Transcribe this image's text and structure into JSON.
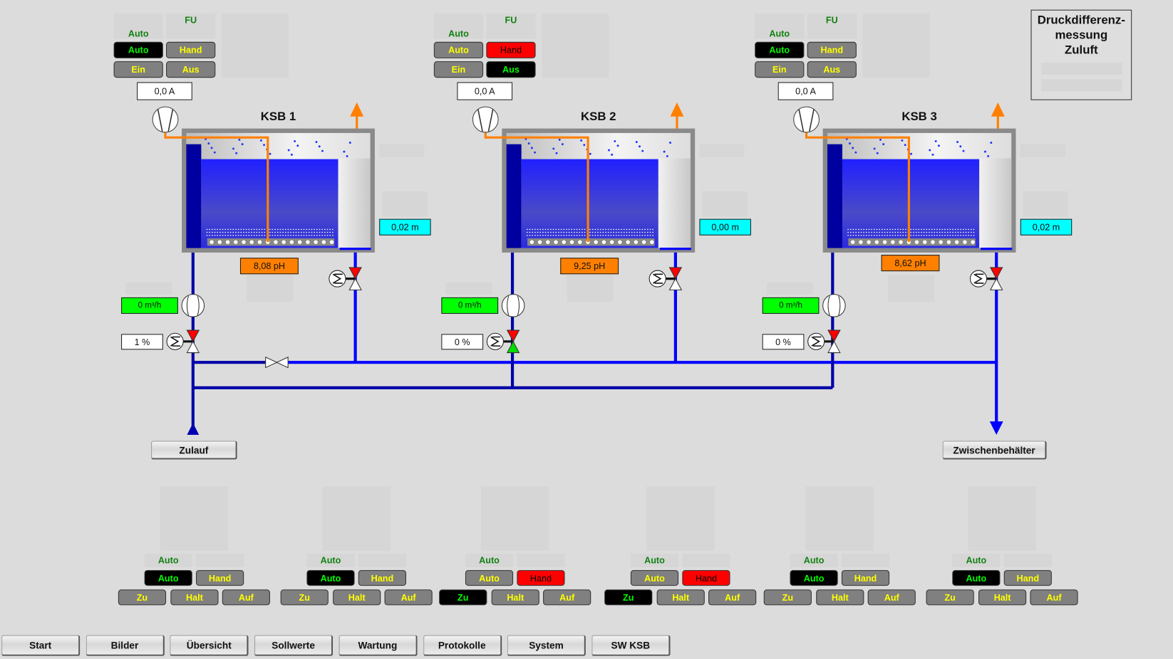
{
  "colors": {
    "background": "#dcdcdc",
    "button": "#808080",
    "button_text": "#ffff00",
    "active": "#000000",
    "active_text": "#00ff00",
    "hand_active": "#ff0000",
    "pipe": "#0000ff",
    "pipe_dark": "#0000a8",
    "exhaust": "#ff8000",
    "water": "#2a2ae8"
  },
  "units": [
    {
      "title": "KSB 1",
      "mode_label": "Auto",
      "fu_label": "FU",
      "auto": {
        "label": "Auto",
        "state": "active"
      },
      "hand": {
        "label": "Hand",
        "state": "inactive"
      },
      "ein": {
        "label": "Ein",
        "state": "inactive"
      },
      "aus": {
        "label": "Aus",
        "state": "inactive"
      },
      "current": "0,0 A",
      "level": "0,02 m",
      "ph": "8,08 pH",
      "flow": "0 m³/h",
      "valve_opening": "1 %",
      "valve_bottom": "white"
    },
    {
      "title": "KSB 2",
      "mode_label": "Auto",
      "fu_label": "FU",
      "auto": {
        "label": "Auto",
        "state": "inactive"
      },
      "hand": {
        "label": "Hand",
        "state": "hand"
      },
      "ein": {
        "label": "Ein",
        "state": "inactive"
      },
      "aus": {
        "label": "Aus",
        "state": "active"
      },
      "current": "0,0 A",
      "level": "0,00 m",
      "ph": "9,25 pH",
      "flow": "0 m³/h",
      "valve_opening": "0 %",
      "valve_bottom": "green"
    },
    {
      "title": "KSB 3",
      "mode_label": "Auto",
      "fu_label": "FU",
      "auto": {
        "label": "Auto",
        "state": "active"
      },
      "hand": {
        "label": "Hand",
        "state": "inactive"
      },
      "ein": {
        "label": "Ein",
        "state": "inactive"
      },
      "aus": {
        "label": "Aus",
        "state": "inactive"
      },
      "current": "0,0 A",
      "level": "0,02 m",
      "ph": "8,62 pH",
      "flow": "0 m³/h",
      "valve_opening": "0 %",
      "valve_bottom": "white"
    }
  ],
  "inlet_button": "Zulauf",
  "outlet_button": "Zwischenbehälter",
  "pressure_panel": {
    "line1": "Druckdifferenz-",
    "line2": "messung",
    "line3": "Zuluft"
  },
  "valve_groups": [
    {
      "mode_label": "Auto",
      "auto": {
        "label": "Auto",
        "state": "active"
      },
      "hand": {
        "label": "Hand",
        "state": "inactive"
      },
      "zu": {
        "label": "Zu",
        "state": "inactive"
      },
      "halt": {
        "label": "Halt",
        "state": "inactive"
      },
      "auf": {
        "label": "Auf",
        "state": "inactive"
      }
    },
    {
      "mode_label": "Auto",
      "auto": {
        "label": "Auto",
        "state": "active"
      },
      "hand": {
        "label": "Hand",
        "state": "inactive"
      },
      "zu": {
        "label": "Zu",
        "state": "inactive"
      },
      "halt": {
        "label": "Halt",
        "state": "inactive"
      },
      "auf": {
        "label": "Auf",
        "state": "inactive"
      }
    },
    {
      "mode_label": "Auto",
      "auto": {
        "label": "Auto",
        "state": "inactive"
      },
      "hand": {
        "label": "Hand",
        "state": "hand"
      },
      "zu": {
        "label": "Zu",
        "state": "active"
      },
      "halt": {
        "label": "Halt",
        "state": "inactive"
      },
      "auf": {
        "label": "Auf",
        "state": "inactive"
      }
    },
    {
      "mode_label": "Auto",
      "auto": {
        "label": "Auto",
        "state": "inactive"
      },
      "hand": {
        "label": "Hand",
        "state": "hand"
      },
      "zu": {
        "label": "Zu",
        "state": "active"
      },
      "halt": {
        "label": "Halt",
        "state": "inactive"
      },
      "auf": {
        "label": "Auf",
        "state": "inactive"
      }
    },
    {
      "mode_label": "Auto",
      "auto": {
        "label": "Auto",
        "state": "active"
      },
      "hand": {
        "label": "Hand",
        "state": "inactive"
      },
      "zu": {
        "label": "Zu",
        "state": "inactive"
      },
      "halt": {
        "label": "Halt",
        "state": "inactive"
      },
      "auf": {
        "label": "Auf",
        "state": "inactive"
      }
    },
    {
      "mode_label": "Auto",
      "auto": {
        "label": "Auto",
        "state": "active"
      },
      "hand": {
        "label": "Hand",
        "state": "inactive"
      },
      "zu": {
        "label": "Zu",
        "state": "inactive"
      },
      "halt": {
        "label": "Halt",
        "state": "inactive"
      },
      "auf": {
        "label": "Auf",
        "state": "inactive"
      }
    }
  ],
  "nav": [
    "Start",
    "Bilder",
    "Übersicht",
    "Sollwerte",
    "Wartung",
    "Protokolle",
    "System",
    "SW KSB"
  ]
}
